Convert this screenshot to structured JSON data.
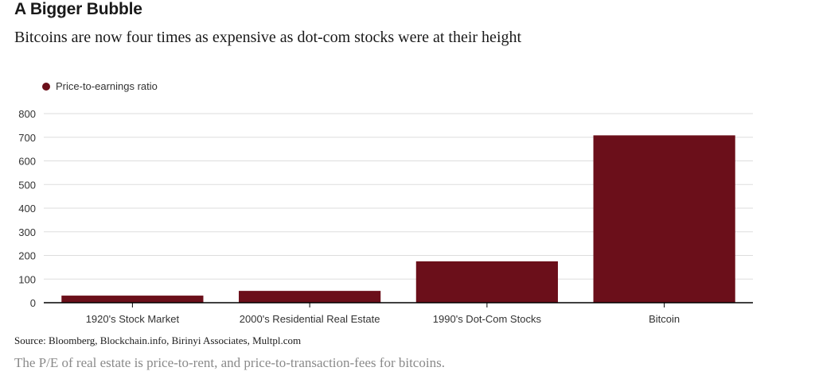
{
  "header": {
    "title": "A Bigger Bubble",
    "subtitle": "Bitcoins are now four times as expensive as dot-com stocks were at their height"
  },
  "chart_data": {
    "type": "bar",
    "categories": [
      "1920's Stock Market",
      "2000's Residential Real Estate",
      "1990's Dot-Com Stocks",
      "Bitcoin"
    ],
    "series": [
      {
        "name": "Price-to-earnings ratio",
        "values": [
          30,
          50,
          175,
          708
        ],
        "color": "#6b0f1a"
      }
    ],
    "ylim": [
      0,
      800
    ],
    "yticks": [
      0,
      100,
      200,
      300,
      400,
      500,
      600,
      700,
      800
    ],
    "grid": true,
    "legend_position": "top-left"
  },
  "footer": {
    "source": "Source: Bloomberg, Blockchain.info, Birinyi Associates, Multpl.com",
    "note": "The P/E of real estate is price-to-rent, and price-to-transaction-fees for bitcoins."
  }
}
